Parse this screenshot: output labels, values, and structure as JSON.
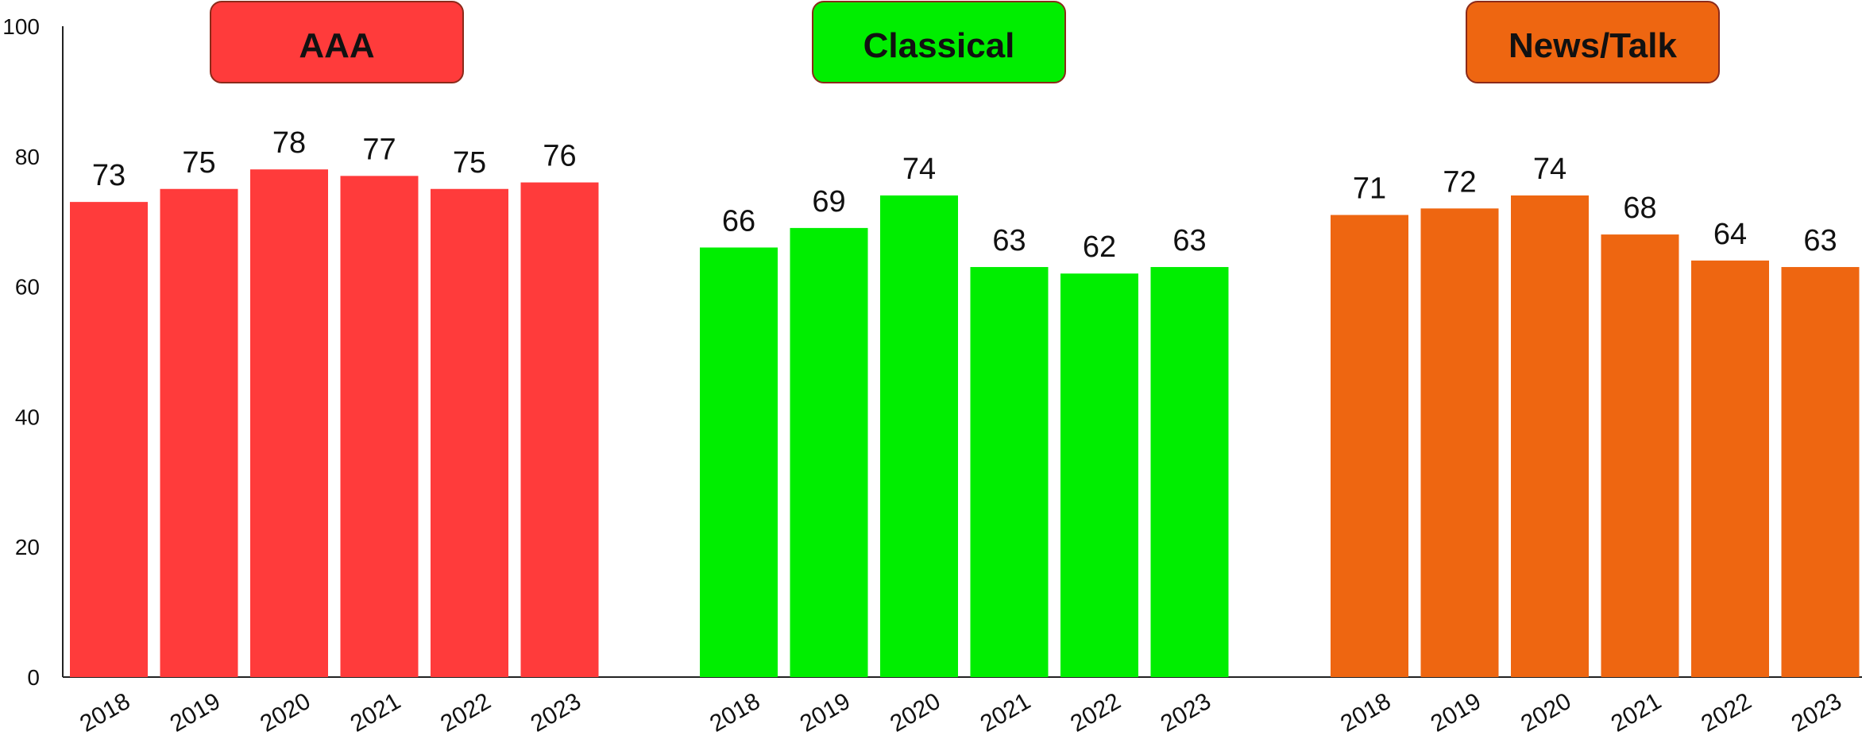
{
  "chart_data": {
    "type": "bar",
    "title": "",
    "xlabel": "",
    "ylabel": "",
    "ylim": [
      0,
      100
    ],
    "yticks": [
      0,
      20,
      40,
      60,
      80,
      100
    ],
    "grid": false,
    "categories": [
      "2018",
      "2019",
      "2020",
      "2021",
      "2022",
      "2023"
    ],
    "groups": [
      {
        "label": "AAA",
        "color": "#ff3b3b",
        "values": [
          73,
          75,
          78,
          77,
          75,
          76
        ]
      },
      {
        "label": "Classical",
        "color": "#00ee00",
        "values": [
          66,
          69,
          74,
          63,
          62,
          63
        ]
      },
      {
        "label": "News/Talk",
        "color": "#ee6611",
        "values": [
          71,
          72,
          74,
          68,
          64,
          63
        ]
      }
    ]
  }
}
